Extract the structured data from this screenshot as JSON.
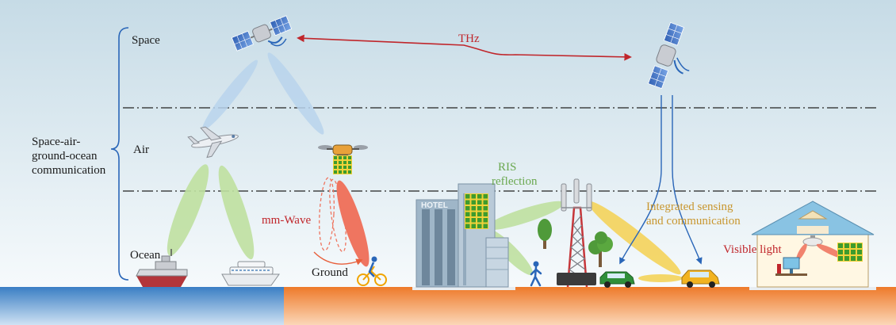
{
  "labels": {
    "space": "Space",
    "air": "Air",
    "ocean": "Ocean",
    "ground": "Ground",
    "system": [
      "Space-air-",
      "ground-ocean",
      "communication"
    ],
    "thz": "THz",
    "mmwave": "mm-Wave",
    "ris": [
      "RIS",
      "reflection"
    ],
    "isac": [
      "Integrated sensing",
      "and communication"
    ],
    "visible_light": "Visible light",
    "hotel_sign": "HOTEL"
  },
  "colors": {
    "sky_top": "#c6dbe6",
    "sky_bottom": "#f3f8fb",
    "sea": "#3d83c6",
    "land": "#ef7d2e",
    "red_text": "#c0262b",
    "green_text": "#6aa84f",
    "gold_text": "#c8962e",
    "link_blue": "#2a66b8",
    "beam_blue": "#b9d3ec",
    "beam_green": "#bfe0a0",
    "beam_yellow": "#f4d35a",
    "beam_red": "#ef7560"
  },
  "icons": [
    "satellite-icon",
    "airplane-icon",
    "drone-icon",
    "ship-icon",
    "cruise-ship-icon",
    "cyclist-icon",
    "pedestrian-icon",
    "car-icon",
    "cell-tower-icon",
    "tree-icon",
    "house-icon",
    "hotel-building-icon",
    "ris-panel-icon",
    "ceiling-light-icon",
    "monitor-icon"
  ]
}
